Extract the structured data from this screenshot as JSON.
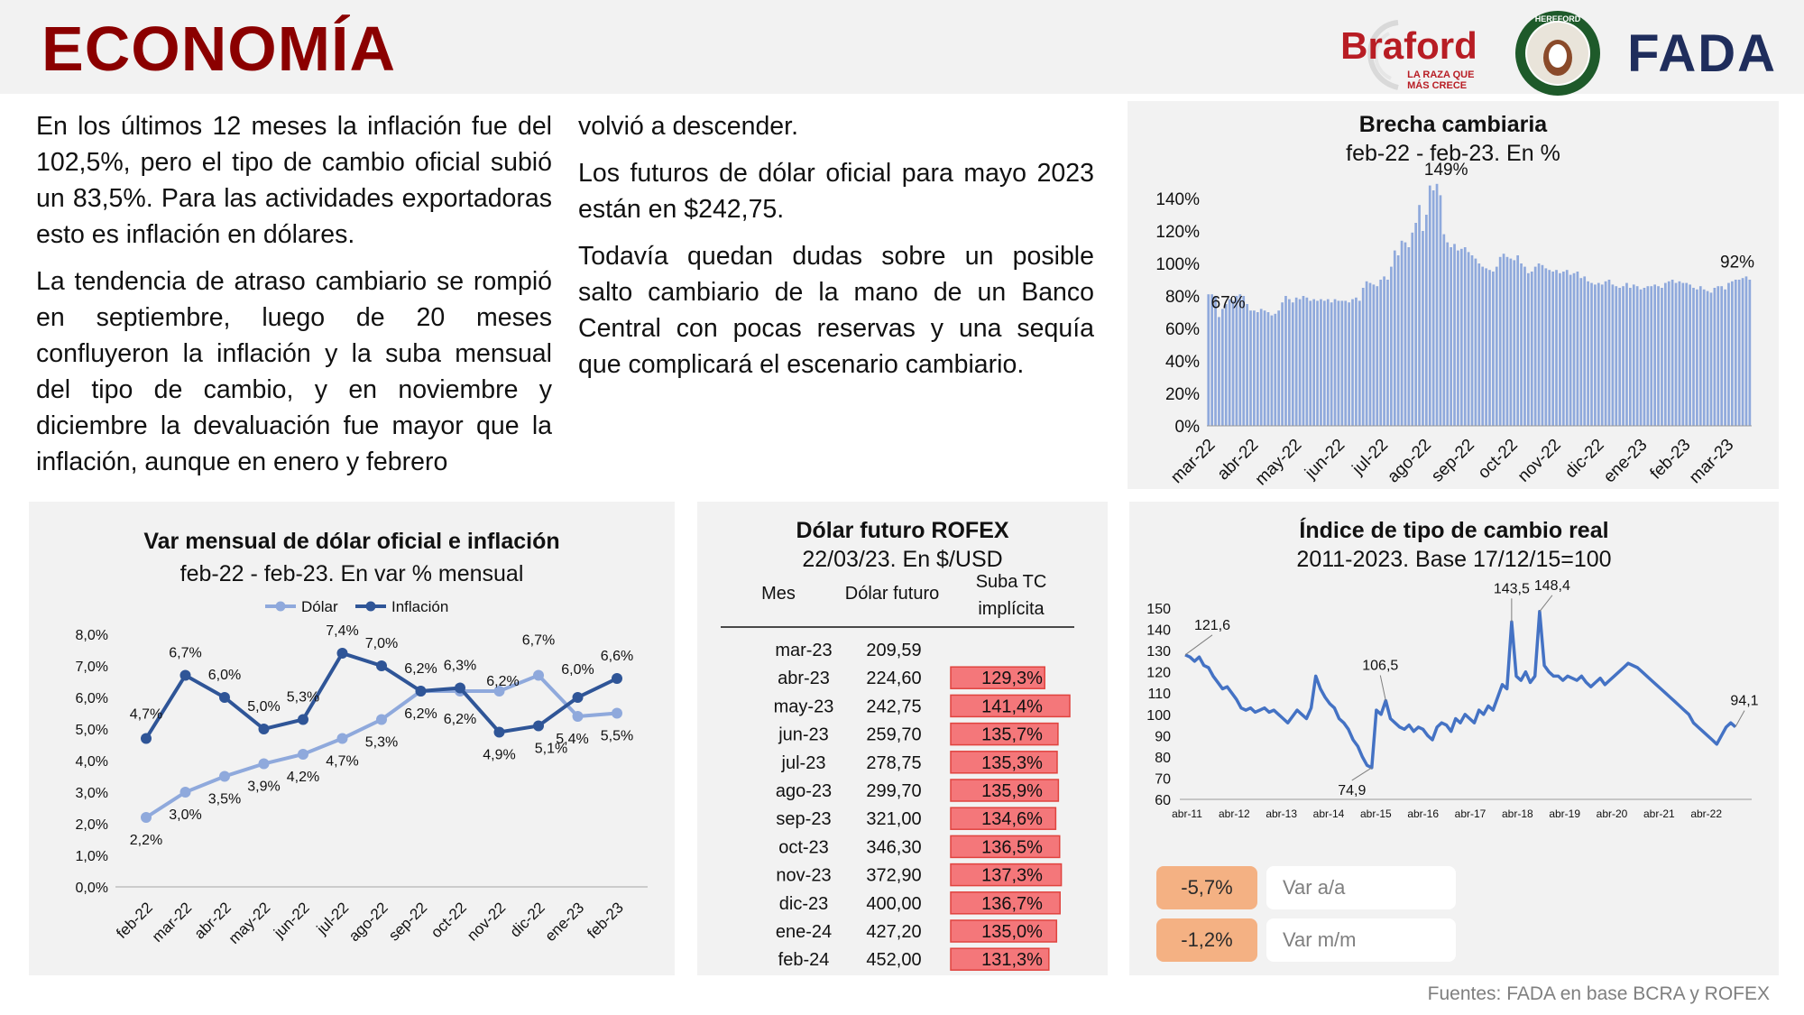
{
  "header": {
    "title": "ECONOMÍA",
    "braford_name": "Braford",
    "braford_tagline": "LA RAZA QUE MÁS CRECE",
    "hereford_ring": "HEREFORD",
    "fada_name": "FADA"
  },
  "text": {
    "left": [
      "En los últimos 12 meses la inflación fue del 102,5%, pero el tipo de cambio oficial subió un 83,5%. Para las actividades exportadoras esto es inflación en dólares.",
      "La tendencia de atraso cambiario se rompió en septiembre, luego de 20 meses confluyeron la inflación y la suba mensual del tipo de cambio, y en noviembre y diciembre la devaluación fue mayor que la inflación, aunque en enero y febrero"
    ],
    "right": [
      "volvió a descender.",
      "Los futuros de dólar oficial para mayo 2023 están en $242,75.",
      "Todavía quedan dudas sobre un posible salto cambiario de la mano de un Banco Central con pocas reservas y una sequía que complicará el escenario cambiario."
    ]
  },
  "colors": {
    "title_red": "#8b0000",
    "bar_blue": "#8fa9dc",
    "dolar_line": "#8fa9dc",
    "inflacion_line": "#2f5597",
    "real_index_line": "#4472c4",
    "rofex_bar": "#f4777a",
    "kpi_orange": "#f4b183"
  },
  "chart_data": [
    {
      "id": "brecha",
      "type": "bar",
      "title": "Brecha cambiaria",
      "subtitle": "feb-22 - feb-23. En %",
      "x_tick_labels": [
        "mar-22",
        "abr-22",
        "may-22",
        "jun-22",
        "jul-22",
        "ago-22",
        "sep-22",
        "oct-22",
        "nov-22",
        "dic-22",
        "ene-23",
        "feb-23",
        "mar-23"
      ],
      "y_tick_labels": [
        "0%",
        "20%",
        "40%",
        "60%",
        "80%",
        "100%",
        "120%",
        "140%"
      ],
      "ylim": [
        0,
        150
      ],
      "annotations": [
        {
          "label": "67%",
          "value": 67
        },
        {
          "label": "149%",
          "value": 149
        },
        {
          "label": "92%",
          "value": 92
        }
      ],
      "values": [
        81,
        81,
        80,
        67,
        72,
        75,
        78,
        77,
        80,
        81,
        80,
        75,
        71,
        71,
        70,
        72,
        71,
        70,
        68,
        69,
        71,
        76,
        80,
        78,
        76,
        79,
        78,
        80,
        79,
        77,
        78,
        77,
        78,
        77,
        78,
        76,
        78,
        77,
        77,
        77,
        76,
        78,
        79,
        77,
        85,
        89,
        88,
        87,
        86,
        90,
        92,
        90,
        98,
        108,
        105,
        114,
        113,
        110,
        119,
        125,
        136,
        120,
        130,
        148,
        145,
        149,
        142,
        118,
        113,
        110,
        112,
        108,
        109,
        110,
        107,
        105,
        103,
        100,
        98,
        97,
        96,
        95,
        98,
        104,
        106,
        104,
        103,
        102,
        105,
        100,
        98,
        94,
        95,
        98,
        100,
        99,
        97,
        96,
        95,
        96,
        94,
        95,
        96,
        93,
        94,
        95,
        91,
        92,
        89,
        88,
        87,
        88,
        87,
        89,
        90,
        87,
        86,
        85,
        86,
        88,
        85,
        87,
        86,
        84,
        85,
        86,
        86,
        87,
        86,
        85,
        88,
        89,
        90,
        88,
        89,
        88,
        88,
        87,
        85,
        84,
        86,
        84,
        83,
        82,
        85,
        86,
        86,
        84,
        88,
        89,
        90,
        90,
        91,
        92,
        90
      ]
    },
    {
      "id": "var_mensual",
      "type": "line",
      "title": "Var mensual de dólar oficial e inflación",
      "subtitle": "feb-22 - feb-23. En var % mensual",
      "categories": [
        "feb-22",
        "mar-22",
        "abr-22",
        "may-22",
        "jun-22",
        "jul-22",
        "ago-22",
        "sep-22",
        "oct-22",
        "nov-22",
        "dic-22",
        "ene-23",
        "feb-23"
      ],
      "y_tick_labels": [
        "0,0%",
        "1,0%",
        "2,0%",
        "3,0%",
        "4,0%",
        "5,0%",
        "6,0%",
        "7,0%",
        "8,0%"
      ],
      "ylim": [
        0,
        8
      ],
      "series": [
        {
          "name": "Dólar",
          "values": [
            2.2,
            3.0,
            3.5,
            3.9,
            4.2,
            4.7,
            5.3,
            6.2,
            6.2,
            6.2,
            6.7,
            5.4,
            5.5
          ],
          "labels": [
            "2,2%",
            "3,0%",
            "3,5%",
            "3,9%",
            "4,2%",
            "4,7%",
            "5,3%",
            "6,2%",
            "6,2%",
            "6,2%",
            "6,7%",
            "5,4%",
            "5,5%"
          ]
        },
        {
          "name": "Inflación",
          "values": [
            4.7,
            6.7,
            6.0,
            5.0,
            5.3,
            7.4,
            7.0,
            6.2,
            6.3,
            4.9,
            5.1,
            6.0,
            6.6
          ],
          "labels": [
            "4,7%",
            "6,7%",
            "6,0%",
            "5,0%",
            "5,3%",
            "7,4%",
            "7,0%",
            "6,2%",
            "6,3%",
            "4,9%",
            "5,1%",
            "6,0%",
            "6,6%"
          ]
        }
      ]
    },
    {
      "id": "rofex",
      "type": "table",
      "title": "Dólar futuro ROFEX",
      "subtitle": "22/03/23. En $/USD",
      "columns": [
        "Mes",
        "Dólar futuro",
        "Suba TC implícita"
      ],
      "rows": [
        {
          "mes": "mar-23",
          "precio": "209,59",
          "suba": "",
          "suba_value": null
        },
        {
          "mes": "abr-23",
          "precio": "224,60",
          "suba": "129,3%",
          "suba_value": 129.3
        },
        {
          "mes": "may-23",
          "precio": "242,75",
          "suba": "141,4%",
          "suba_value": 141.4
        },
        {
          "mes": "jun-23",
          "precio": "259,70",
          "suba": "135,7%",
          "suba_value": 135.7
        },
        {
          "mes": "jul-23",
          "precio": "278,75",
          "suba": "135,3%",
          "suba_value": 135.3
        },
        {
          "mes": "ago-23",
          "precio": "299,70",
          "suba": "135,9%",
          "suba_value": 135.9
        },
        {
          "mes": "sep-23",
          "precio": "321,00",
          "suba": "134,6%",
          "suba_value": 134.6
        },
        {
          "mes": "oct-23",
          "precio": "346,30",
          "suba": "136,5%",
          "suba_value": 136.5
        },
        {
          "mes": "nov-23",
          "precio": "372,90",
          "suba": "137,3%",
          "suba_value": 137.3
        },
        {
          "mes": "dic-23",
          "precio": "400,00",
          "suba": "136,7%",
          "suba_value": 136.7
        },
        {
          "mes": "ene-24",
          "precio": "427,20",
          "suba": "135,0%",
          "suba_value": 135.0
        },
        {
          "mes": "feb-24",
          "precio": "452,00",
          "suba": "131,3%",
          "suba_value": 131.3
        }
      ]
    },
    {
      "id": "tcr",
      "type": "line",
      "title": "Índice de tipo de cambio real",
      "subtitle": "2011-2023. Base 17/12/15=100",
      "x_tick_labels": [
        "abr-11",
        "abr-12",
        "abr-13",
        "abr-14",
        "abr-15",
        "abr-16",
        "abr-17",
        "abr-18",
        "abr-19",
        "abr-20",
        "abr-21",
        "abr-22"
      ],
      "y_tick_labels": [
        "60",
        "70",
        "80",
        "90",
        "100",
        "110",
        "120",
        "130",
        "140",
        "150"
      ],
      "ylim": [
        60,
        150
      ],
      "annotations": [
        {
          "label": "121,6",
          "value": 121.6
        },
        {
          "label": "74,9",
          "value": 74.9
        },
        {
          "label": "106,5",
          "value": 106.5
        },
        {
          "label": "143,5",
          "value": 143.5
        },
        {
          "label": "148,4",
          "value": 148.4
        },
        {
          "label": "94,1",
          "value": 94.1
        }
      ],
      "values": [
        128,
        127,
        125,
        127,
        123,
        122,
        118,
        115,
        112,
        113,
        110,
        107,
        103,
        102,
        103,
        101,
        102,
        103,
        101,
        102,
        100,
        98,
        96,
        99,
        102,
        100,
        98,
        103,
        118,
        112,
        108,
        105,
        103,
        98,
        96,
        93,
        88,
        85,
        80,
        76,
        74.9,
        102,
        100,
        106.5,
        98,
        96,
        94,
        93,
        95,
        92,
        94,
        93,
        90,
        88,
        94,
        96,
        95,
        92,
        98,
        96,
        100,
        98,
        96,
        102,
        100,
        104,
        102,
        108,
        114,
        112,
        143.5,
        118,
        116,
        120,
        115,
        118,
        148.4,
        123,
        120,
        118,
        118,
        116,
        118,
        117,
        116,
        118,
        115,
        113,
        115,
        117,
        114,
        116,
        118,
        120,
        122,
        124,
        123,
        122,
        120,
        118,
        116,
        114,
        112,
        110,
        108,
        106,
        104,
        102,
        100,
        96,
        94,
        92,
        90,
        88,
        86,
        90,
        94,
        96,
        94.1
      ]
    }
  ],
  "kpis": [
    {
      "value": "-5,7%",
      "label": "Var a/a"
    },
    {
      "value": "-1,2%",
      "label": "Var m/m"
    }
  ],
  "source": "Fuentes: FADA en base BCRA y ROFEX"
}
